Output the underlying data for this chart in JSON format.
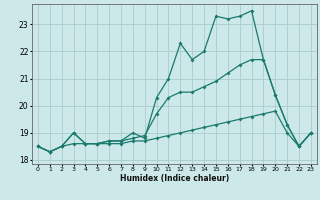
{
  "x": [
    0,
    1,
    2,
    3,
    4,
    5,
    6,
    7,
    8,
    9,
    10,
    11,
    12,
    13,
    14,
    15,
    16,
    17,
    18,
    19,
    20,
    21,
    22,
    23
  ],
  "line1": [
    18.5,
    18.3,
    18.5,
    19.0,
    18.6,
    18.6,
    18.7,
    18.7,
    19.0,
    18.8,
    20.3,
    21.0,
    22.3,
    21.7,
    22.0,
    23.3,
    23.2,
    23.3,
    23.5,
    21.7,
    20.4,
    19.3,
    18.5,
    19.0
  ],
  "line2": [
    18.5,
    18.3,
    18.5,
    19.0,
    18.6,
    18.6,
    18.7,
    18.7,
    18.8,
    18.9,
    19.7,
    20.3,
    20.5,
    20.5,
    20.7,
    20.9,
    21.2,
    21.5,
    21.7,
    21.7,
    20.4,
    19.3,
    18.5,
    19.0
  ],
  "line3": [
    18.5,
    18.3,
    18.5,
    18.6,
    18.6,
    18.6,
    18.6,
    18.6,
    18.7,
    18.7,
    18.8,
    18.9,
    19.0,
    19.1,
    19.2,
    19.3,
    19.4,
    19.5,
    19.6,
    19.7,
    19.8,
    19.0,
    18.5,
    19.0
  ],
  "bg_color": "#cce8e8",
  "grid_color": "#aacccc",
  "line_color": "#1a7a6e",
  "xlabel": "Humidex (Indice chaleur)",
  "yticks": [
    18,
    19,
    20,
    21,
    22,
    23
  ],
  "xticks": [
    0,
    1,
    2,
    3,
    4,
    5,
    6,
    7,
    8,
    9,
    10,
    11,
    12,
    13,
    14,
    15,
    16,
    17,
    18,
    19,
    20,
    21,
    22,
    23
  ],
  "xlim": [
    -0.5,
    23.5
  ],
  "ylim": [
    17.85,
    23.75
  ]
}
